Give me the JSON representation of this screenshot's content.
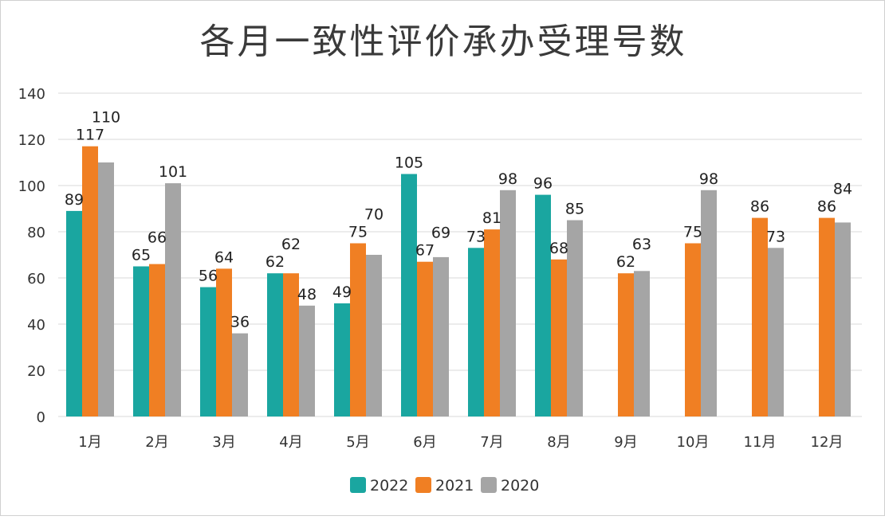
{
  "chart_data": {
    "type": "bar",
    "title": "各月一致性评价承办受理号数",
    "categories": [
      "1月",
      "2月",
      "3月",
      "4月",
      "5月",
      "6月",
      "7月",
      "8月",
      "9月",
      "10月",
      "11月",
      "12月"
    ],
    "series": [
      {
        "name": "2022",
        "color": "#1aa6a0",
        "values": [
          89,
          65,
          56,
          62,
          49,
          105,
          73,
          96,
          null,
          null,
          null,
          null
        ]
      },
      {
        "name": "2021",
        "color": "#f07f23",
        "values": [
          117,
          66,
          64,
          62,
          75,
          67,
          81,
          68,
          62,
          75,
          86,
          86
        ]
      },
      {
        "name": "2020",
        "color": "#a5a5a5",
        "values": [
          110,
          101,
          36,
          48,
          70,
          69,
          98,
          85,
          63,
          98,
          73,
          84
        ]
      }
    ],
    "ylim": [
      0,
      140
    ],
    "yticks": [
      0,
      20,
      40,
      60,
      80,
      100,
      120,
      140
    ],
    "grid": true,
    "legend": "bottom",
    "data_labels": true
  }
}
